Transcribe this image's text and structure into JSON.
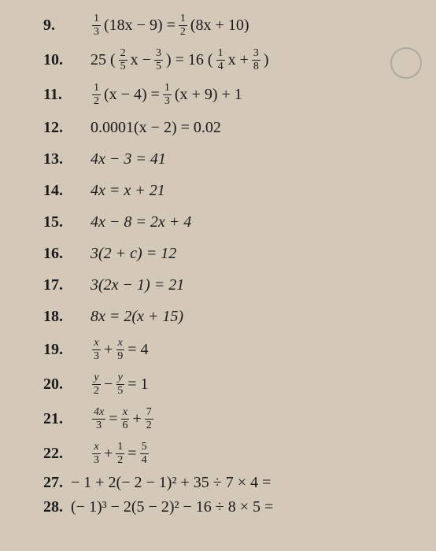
{
  "problems": [
    {
      "num": "9.",
      "type": "frac-both",
      "eq_parts": {
        "f1n": "1",
        "f1d": "3",
        "mid1": "(18x − 9) =",
        "f2n": "1",
        "f2d": "2",
        "mid2": "(8x + 10)"
      }
    },
    {
      "num": "10.",
      "type": "frac-inner",
      "eq_parts": {
        "pre": "25 (",
        "f1n": "2",
        "f1d": "5",
        "mid1": "x −",
        "f2n": "3",
        "f2d": "5",
        "mid2": ") = 16 (",
        "f3n": "1",
        "f3d": "4",
        "mid3": "x +",
        "f4n": "3",
        "f4d": "8",
        "post": ")"
      }
    },
    {
      "num": "11.",
      "type": "frac-both-plus",
      "eq_parts": {
        "f1n": "1",
        "f1d": "2",
        "mid1": "(x − 4) =",
        "f2n": "1",
        "f2d": "3",
        "mid2": "(x + 9) + 1"
      }
    },
    {
      "num": "12.",
      "type": "plain",
      "text": "0.0001(x − 2) = 0.02"
    },
    {
      "num": "13.",
      "type": "plain-italic",
      "text": "4x − 3 = 41"
    },
    {
      "num": "14.",
      "type": "plain-italic",
      "text": "4x = x + 21"
    },
    {
      "num": "15.",
      "type": "plain-italic",
      "text": "4x − 8 = 2x + 4"
    },
    {
      "num": "16.",
      "type": "plain-italic",
      "text": "3(2 + c) = 12"
    },
    {
      "num": "17.",
      "type": "plain-italic",
      "text": "3(2x − 1) = 21"
    },
    {
      "num": "18.",
      "type": "plain-italic",
      "text": "8x = 2(x + 15)"
    },
    {
      "num": "19.",
      "type": "frac-sum",
      "eq_parts": {
        "f1n": "x",
        "f1d": "3",
        "op1": "+",
        "f2n": "x",
        "f2d": "9",
        "rhs": "= 4"
      }
    },
    {
      "num": "20.",
      "type": "frac-sum",
      "eq_parts": {
        "f1n": "y",
        "f1d": "2",
        "op1": "−",
        "f2n": "y",
        "f2d": "5",
        "rhs": "= 1"
      }
    },
    {
      "num": "21.",
      "type": "frac-triple",
      "eq_parts": {
        "f1n": "4x",
        "f1d": "3",
        "op1": "=",
        "f2n": "x",
        "f2d": "6",
        "op2": "+",
        "f3n": "7",
        "f3d": "2"
      }
    },
    {
      "num": "22.",
      "type": "frac-triple",
      "eq_parts": {
        "f1n": "x",
        "f1d": "3",
        "op1": "+",
        "f2n": "1",
        "f2d": "2",
        "op2": "=",
        "f3n": "5",
        "f3d": "4"
      }
    }
  ],
  "bottom": [
    {
      "num": "27.",
      "text": "− 1 + 2(− 2 − 1)² + 35 ÷ 7 × 4 ="
    },
    {
      "num": "28.",
      "text": "(− 1)³ − 2(5 − 2)² − 16 ÷ 8 × 5 ="
    }
  ],
  "colors": {
    "background": "#d4c8b8",
    "text": "#1a1a1a"
  },
  "fonts": {
    "family": "Times New Roman",
    "num_size": 20,
    "eq_size": 20,
    "frac_size": 14
  }
}
